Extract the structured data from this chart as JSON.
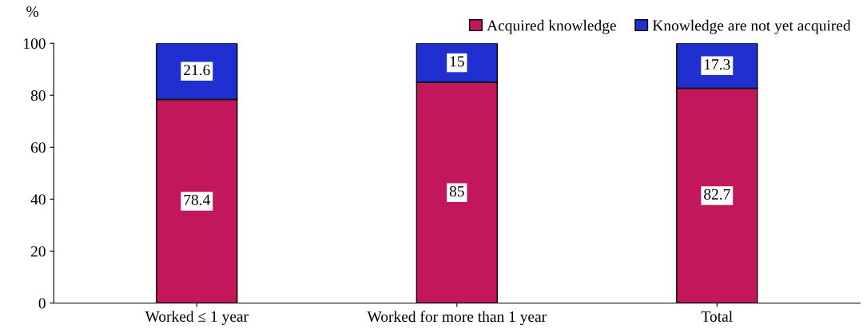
{
  "chart_data": {
    "type": "bar",
    "stacked": true,
    "ylabel": "%",
    "categories": [
      "Worked ≤ 1 year",
      "Worked for more than 1 year",
      "Total"
    ],
    "series": [
      {
        "name": "Acquired knowledge",
        "color": "#c2185b",
        "values": [
          78.4,
          85,
          82.7
        ]
      },
      {
        "name": "Knowledge are not yet acquired",
        "color": "#1f2fd0",
        "values": [
          21.6,
          15,
          17.3
        ]
      }
    ],
    "ylim": [
      0,
      100
    ],
    "yticks": [
      0,
      20,
      40,
      60,
      80,
      100
    ],
    "grid": false,
    "legend": "top right",
    "data_labels": true
  }
}
